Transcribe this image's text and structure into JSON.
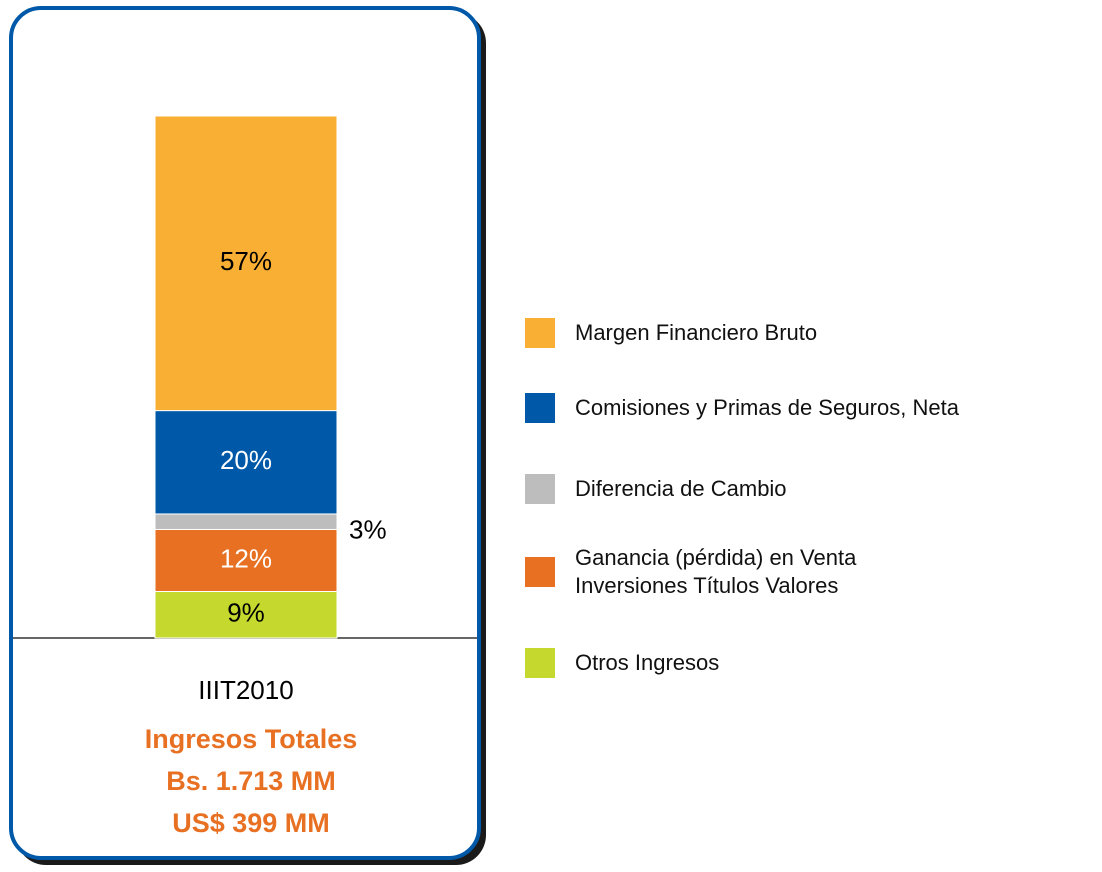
{
  "chart_data": {
    "type": "bar",
    "stacked": true,
    "categories": [
      "IIIT2010"
    ],
    "series": [
      {
        "name": "Margen Financiero Bruto",
        "color": "#F9AF33",
        "values": [
          57
        ],
        "value_labels": [
          "57%"
        ]
      },
      {
        "name": "Comisiones y Primas de Seguros, Neta",
        "color": "#0059A8",
        "values": [
          20
        ],
        "value_labels": [
          "20%"
        ]
      },
      {
        "name": "Diferencia de Cambio",
        "color": "#BDBDBD",
        "values": [
          3
        ],
        "value_labels": [
          "3%"
        ]
      },
      {
        "name": "Ganancia (pérdida) en Venta Inversiones Títulos Valores",
        "color": "#E87022",
        "values": [
          12
        ],
        "value_labels": [
          "12%"
        ]
      },
      {
        "name": "Otros Ingresos",
        "color": "#C4D82E",
        "values": [
          9
        ],
        "value_labels": [
          "9%"
        ]
      }
    ],
    "annotations": [
      "Ingresos Totales",
      "Bs. 1.713 MM",
      "US$ 399 MM"
    ],
    "annotation_color": "#E87022"
  }
}
